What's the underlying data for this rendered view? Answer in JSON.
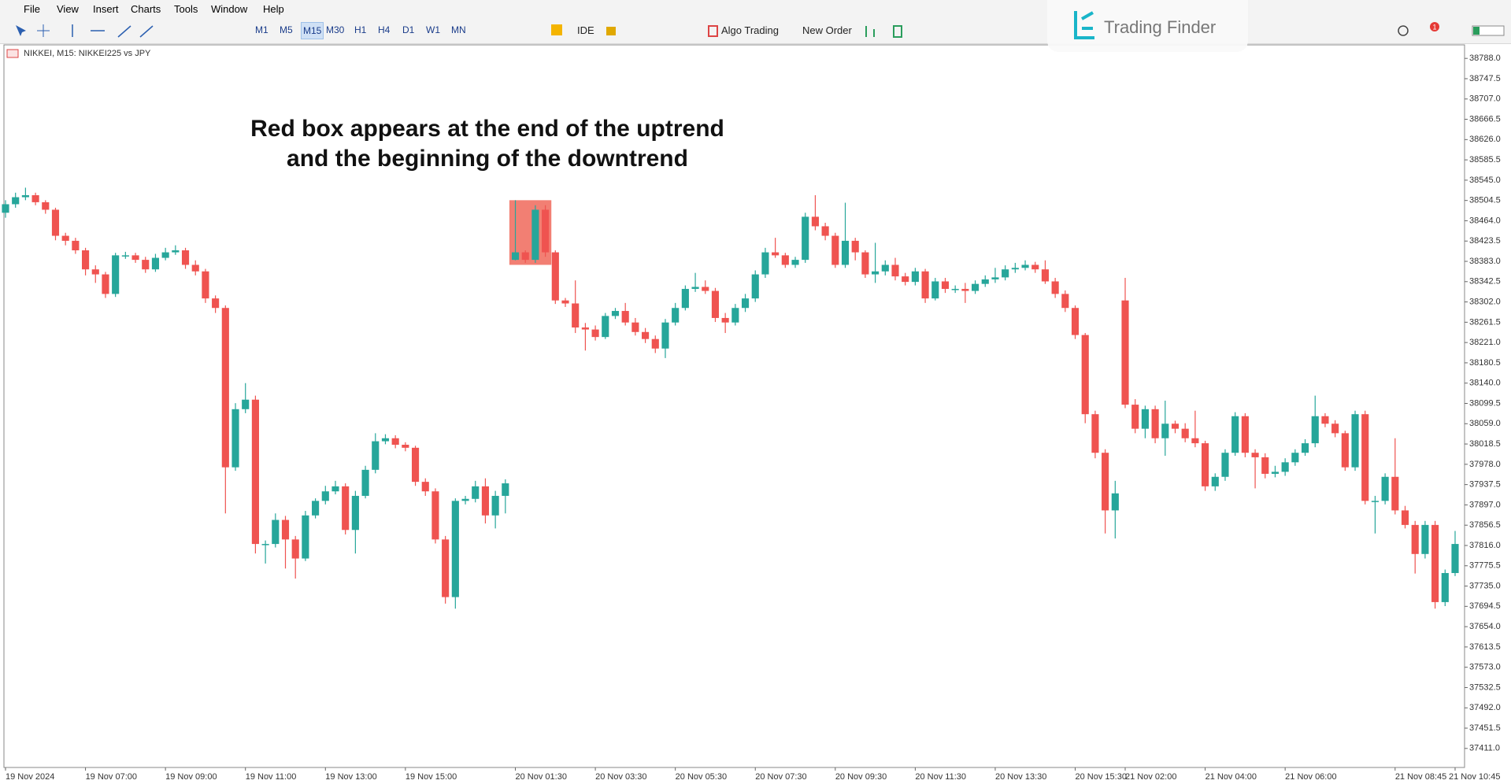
{
  "ui": {
    "menu": [
      "File",
      "View",
      "Insert",
      "Charts",
      "Tools",
      "Window",
      "Help"
    ],
    "timeframes": [
      "M1",
      "M5",
      "M15",
      "M30",
      "H1",
      "H4",
      "D1",
      "W1",
      "MN"
    ],
    "ide": "IDE",
    "algo_trading": "Algo Trading",
    "new_order": "New Order",
    "brand": "Trading Finder",
    "notifications": "1"
  },
  "chart_data": {
    "type": "candlestick",
    "symbol": "NIKKEI, M15:  NIKKEI225 vs JPY",
    "annotation": [
      "Red box appears at the end of the uptrend",
      "and the beginning of the downtrend"
    ],
    "up_color": "#26a69a",
    "down_color": "#ef5350",
    "box": {
      "start": 51,
      "end": 54,
      "top": 38505,
      "bottom": 38376,
      "color": "#f0685a"
    },
    "ylim": [
      37373,
      38815
    ],
    "yticks": [
      {
        "value": 38788.0,
        "label": "38788.0"
      },
      38747.5,
      {
        "value": 38707.0,
        "label": "38707.0"
      },
      38666.5,
      {
        "value": 38626.0,
        "label": "38626.0"
      },
      38585.5,
      {
        "value": 38545.0,
        "label": "38545.0"
      },
      38504.5,
      {
        "value": 38464.0,
        "label": "38464.0"
      },
      38423.5,
      {
        "value": 38383.0,
        "label": "38383.0"
      },
      38342.5,
      {
        "value": 38302.0,
        "label": "38302.0"
      },
      38261.5,
      {
        "value": 38221.0,
        "label": "38221.0"
      },
      38180.5,
      {
        "value": 38140.0,
        "label": "38140.0"
      },
      38099.5,
      {
        "value": 38059.0,
        "label": "38059.0"
      },
      38018.5,
      {
        "value": 37978.0,
        "label": "37978.0"
      },
      37937.5,
      {
        "value": 37897.0,
        "label": "37897.0"
      },
      37856.5,
      {
        "value": 37816.0,
        "label": "37816.0"
      },
      37775.5,
      {
        "value": 37735.0,
        "label": "37735.0"
      },
      37694.5,
      {
        "value": 37654.0,
        "label": "37654.0"
      },
      37613.5,
      {
        "value": 37573.0,
        "label": "37573.0"
      },
      37532.5,
      {
        "value": 37492.0,
        "label": "37492.0"
      },
      37451.5,
      {
        "value": 37411.0,
        "label": "37411.0"
      }
    ],
    "categories": [
      "19 Nov 2024",
      null,
      null,
      null,
      null,
      null,
      null,
      null,
      "19 Nov 07:00",
      null,
      null,
      null,
      null,
      null,
      null,
      null,
      "19 Nov 09:00",
      null,
      null,
      null,
      null,
      null,
      null,
      null,
      "19 Nov 11:00",
      null,
      null,
      null,
      null,
      null,
      null,
      null,
      "19 Nov 13:00",
      null,
      null,
      null,
      null,
      null,
      null,
      null,
      "19 Nov 15:00",
      null,
      null,
      null,
      null,
      null,
      null,
      null,
      null,
      null,
      null,
      "20 Nov 01:30",
      null,
      null,
      null,
      null,
      null,
      null,
      null,
      "20 Nov 03:30",
      null,
      null,
      null,
      null,
      null,
      null,
      null,
      "20 Nov 05:30",
      null,
      null,
      null,
      null,
      null,
      null,
      null,
      "20 Nov 07:30",
      null,
      null,
      null,
      null,
      null,
      null,
      null,
      "20 Nov 09:30",
      null,
      null,
      null,
      null,
      null,
      null,
      null,
      "20 Nov 11:30",
      null,
      null,
      null,
      null,
      null,
      null,
      null,
      "20 Nov 13:30",
      null,
      null,
      null,
      null,
      null,
      null,
      null,
      "20 Nov 15:30",
      null,
      null,
      null,
      null,
      "21 Nov 02:00",
      null,
      null,
      null,
      null,
      null,
      null,
      null,
      "21 Nov 04:00",
      null,
      null,
      null,
      null,
      null,
      null,
      null,
      "21 Nov 06:00",
      null,
      null,
      null,
      null,
      null,
      null,
      null,
      null,
      null,
      null,
      "21 Nov 08:45",
      null,
      null,
      null,
      null,
      null,
      "21 Nov 10:45"
    ],
    "ohlc": [
      [
        38480,
        38505,
        38470,
        38497
      ],
      [
        38497,
        38520,
        38490,
        38511
      ],
      [
        38511,
        38530,
        38505,
        38515
      ],
      [
        38515,
        38520,
        38495,
        38501
      ],
      [
        38501,
        38505,
        38478,
        38486
      ],
      [
        38486,
        38490,
        38425,
        38434
      ],
      [
        38434,
        38440,
        38415,
        38424
      ],
      [
        38424,
        38430,
        38398,
        38405
      ],
      [
        38405,
        38410,
        38355,
        38367
      ],
      [
        38367,
        38375,
        38340,
        38357
      ],
      [
        38357,
        38362,
        38310,
        38318
      ],
      [
        38318,
        38400,
        38312,
        38395
      ],
      [
        38395,
        38402,
        38388,
        38395
      ],
      [
        38395,
        38400,
        38380,
        38386
      ],
      [
        38386,
        38392,
        38360,
        38367
      ],
      [
        38367,
        38398,
        38362,
        38390
      ],
      [
        38390,
        38410,
        38385,
        38401
      ],
      [
        38401,
        38415,
        38396,
        38405
      ],
      [
        38405,
        38410,
        38368,
        38376
      ],
      [
        38376,
        38385,
        38355,
        38363
      ],
      [
        38363,
        38368,
        38300,
        38309
      ],
      [
        38309,
        38315,
        38280,
        38290
      ],
      [
        38290,
        38295,
        37880,
        37972
      ],
      [
        37972,
        38100,
        37965,
        38088
      ],
      [
        38088,
        38140,
        38080,
        38107
      ],
      [
        38107,
        38115,
        37800,
        37819
      ],
      [
        37819,
        37826,
        37780,
        37819
      ],
      [
        37819,
        37880,
        37812,
        37867
      ],
      [
        37867,
        37875,
        37770,
        37828
      ],
      [
        37828,
        37835,
        37750,
        37790
      ],
      [
        37790,
        37885,
        37785,
        37876
      ],
      [
        37876,
        37910,
        37870,
        37905
      ],
      [
        37905,
        37935,
        37898,
        37924
      ],
      [
        37924,
        37945,
        37918,
        37934
      ],
      [
        37934,
        37940,
        37838,
        37847
      ],
      [
        37847,
        37925,
        37800,
        37915
      ],
      [
        37915,
        37975,
        37910,
        37967
      ],
      [
        37967,
        38040,
        37960,
        38024
      ],
      [
        38024,
        38038,
        38018,
        38030
      ],
      [
        38030,
        38036,
        38010,
        38017
      ],
      [
        38017,
        38022,
        38004,
        38011
      ],
      [
        38011,
        38015,
        37935,
        37943
      ],
      [
        37943,
        37950,
        37915,
        37924
      ],
      [
        37924,
        37930,
        37820,
        37828
      ],
      [
        37828,
        37835,
        37700,
        37713
      ],
      [
        37713,
        37910,
        37690,
        37905
      ],
      [
        37905,
        37915,
        37898,
        37909
      ],
      [
        37909,
        37945,
        37902,
        37934
      ],
      [
        37934,
        37950,
        37860,
        37876
      ],
      [
        37876,
        37925,
        37850,
        37915
      ],
      [
        37915,
        37948,
        37880,
        37940
      ],
      [
        38386,
        38505,
        38385,
        38401
      ],
      [
        38401,
        38405,
        38380,
        38386
      ],
      [
        38386,
        38495,
        38380,
        38486
      ],
      [
        38486,
        38495,
        38392,
        38401
      ],
      [
        38401,
        38405,
        38298,
        38305
      ],
      [
        38305,
        38310,
        38292,
        38299
      ],
      [
        38299,
        38345,
        38240,
        38251
      ],
      [
        38251,
        38260,
        38205,
        38247
      ],
      [
        38247,
        38255,
        38225,
        38232
      ],
      [
        38232,
        38280,
        38228,
        38274
      ],
      [
        38274,
        38290,
        38268,
        38284
      ],
      [
        38284,
        38300,
        38255,
        38261
      ],
      [
        38261,
        38270,
        38235,
        38242
      ],
      [
        38242,
        38250,
        38220,
        38228
      ],
      [
        38228,
        38235,
        38200,
        38209
      ],
      [
        38209,
        38268,
        38190,
        38261
      ],
      [
        38261,
        38300,
        38255,
        38290
      ],
      [
        38290,
        38335,
        38285,
        38328
      ],
      [
        38328,
        38360,
        38322,
        38332
      ],
      [
        38332,
        38345,
        38318,
        38324
      ],
      [
        38324,
        38330,
        38262,
        38270
      ],
      [
        38270,
        38280,
        38240,
        38261
      ],
      [
        38261,
        38298,
        38255,
        38290
      ],
      [
        38290,
        38318,
        38282,
        38309
      ],
      [
        38309,
        38365,
        38302,
        38357
      ],
      [
        38357,
        38410,
        38350,
        38401
      ],
      [
        38401,
        38430,
        38390,
        38395
      ],
      [
        38395,
        38400,
        38370,
        38376
      ],
      [
        38376,
        38392,
        38370,
        38386
      ],
      [
        38386,
        38480,
        38380,
        38472
      ],
      [
        38472,
        38515,
        38445,
        38453
      ],
      [
        38453,
        38460,
        38425,
        38434
      ],
      [
        38434,
        38440,
        38370,
        38376
      ],
      [
        38376,
        38500,
        38370,
        38424
      ],
      [
        38424,
        38430,
        38385,
        38401
      ],
      [
        38401,
        38405,
        38350,
        38357
      ],
      [
        38357,
        38420,
        38340,
        38363
      ],
      [
        38363,
        38385,
        38355,
        38376
      ],
      [
        38376,
        38390,
        38345,
        38353
      ],
      [
        38353,
        38360,
        38335,
        38342
      ],
      [
        38342,
        38370,
        38335,
        38363
      ],
      [
        38363,
        38368,
        38300,
        38309
      ],
      [
        38309,
        38350,
        38305,
        38343
      ],
      [
        38343,
        38350,
        38320,
        38328
      ],
      [
        38328,
        38335,
        38320,
        38328
      ],
      [
        38328,
        38340,
        38300,
        38324
      ],
      [
        38324,
        38345,
        38318,
        38338
      ],
      [
        38338,
        38355,
        38332,
        38347
      ],
      [
        38347,
        38370,
        38340,
        38351
      ],
      [
        38351,
        38375,
        38345,
        38367
      ],
      [
        38367,
        38380,
        38360,
        38370
      ],
      [
        38370,
        38385,
        38365,
        38376
      ],
      [
        38376,
        38382,
        38360,
        38367
      ],
      [
        38367,
        38385,
        38338,
        38343
      ],
      [
        38343,
        38350,
        38310,
        38318
      ],
      [
        38318,
        38325,
        38282,
        38290
      ],
      [
        38290,
        38295,
        38228,
        38236
      ],
      [
        38236,
        38240,
        38060,
        38078
      ],
      [
        38078,
        38085,
        37990,
        38001
      ],
      [
        38001,
        38008,
        37840,
        37886
      ],
      [
        37886,
        37945,
        37830,
        37920
      ],
      [
        38305,
        38350,
        38090,
        38097
      ],
      [
        38097,
        38108,
        38040,
        38049
      ],
      [
        38049,
        38095,
        38030,
        38088
      ],
      [
        38088,
        38095,
        38020,
        38030
      ],
      [
        38030,
        38105,
        37995,
        38059
      ],
      [
        38059,
        38065,
        38040,
        38049
      ],
      [
        38049,
        38060,
        38022,
        38030
      ],
      [
        38030,
        38085,
        38012,
        38020
      ],
      [
        38020,
        38025,
        37925,
        37934
      ],
      [
        37934,
        37960,
        37925,
        37953
      ],
      [
        37953,
        38008,
        37945,
        38001
      ],
      [
        38001,
        38082,
        37995,
        38074
      ],
      [
        38074,
        38080,
        37992,
        38001
      ],
      [
        38001,
        38008,
        37930,
        37992
      ],
      [
        37992,
        38000,
        37950,
        37959
      ],
      [
        37959,
        37975,
        37952,
        37963
      ],
      [
        37963,
        37990,
        37955,
        37982
      ],
      [
        37982,
        38008,
        37975,
        38001
      ],
      [
        38001,
        38028,
        37995,
        38020
      ],
      [
        38020,
        38115,
        38012,
        38074
      ],
      [
        38074,
        38080,
        38052,
        38059
      ],
      [
        38059,
        38066,
        38032,
        38040
      ],
      [
        38040,
        38045,
        37965,
        37972
      ],
      [
        37972,
        38085,
        37965,
        38078
      ],
      [
        38078,
        38085,
        37898,
        37905
      ],
      [
        37905,
        37915,
        37840,
        37905
      ],
      [
        37905,
        37960,
        37898,
        37953
      ],
      [
        37953,
        38030,
        37878,
        37886
      ],
      [
        37886,
        37895,
        37850,
        37857
      ],
      [
        37857,
        37865,
        37760,
        37799
      ],
      [
        37799,
        37865,
        37790,
        37857
      ],
      [
        37857,
        37865,
        37690,
        37703
      ],
      [
        37703,
        37768,
        37695,
        37761
      ],
      [
        37761,
        37845,
        37755,
        37819
      ]
    ]
  }
}
